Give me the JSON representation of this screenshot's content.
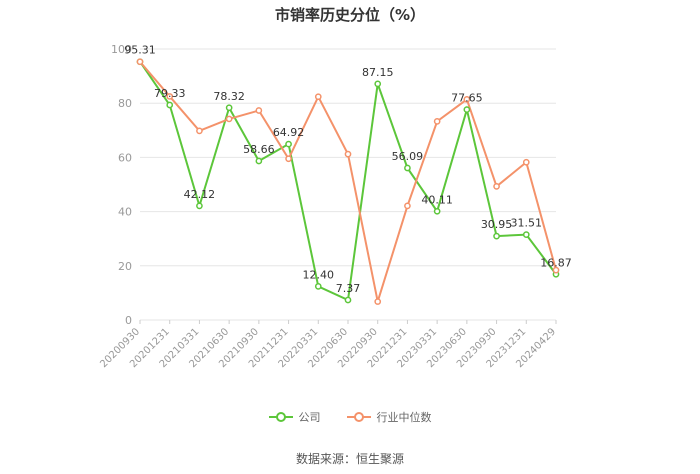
{
  "title": "市销率历史分位（%）",
  "source": "数据来源：恒生聚源",
  "colors": {
    "company": "#5cc63a",
    "industry": "#f4926a",
    "grid": "#e6e6e6",
    "axis_text": "#999999"
  },
  "chart_data": {
    "type": "line",
    "title": "市销率历史分位（%）",
    "x": [
      "20200930",
      "20201231",
      "20210331",
      "20210630",
      "20210930",
      "20211231",
      "20220331",
      "20220630",
      "20220930",
      "20221231",
      "20230331",
      "20230630",
      "20230930",
      "20231231",
      "20240429"
    ],
    "ylim": [
      0,
      100
    ],
    "yticks": [
      0,
      20,
      40,
      60,
      80,
      100
    ],
    "grid": true,
    "legend": "bottom",
    "series": [
      {
        "name": "公司",
        "color": "#5cc63a",
        "labeled": true,
        "values": [
          95.31,
          79.33,
          42.12,
          78.32,
          58.66,
          64.92,
          12.4,
          7.37,
          87.15,
          56.09,
          40.11,
          77.65,
          30.95,
          31.51,
          16.87
        ],
        "labels": [
          "95.31",
          "79.33",
          "42.12",
          "78.32",
          "58.66",
          "64.92",
          "12.40",
          "7.37",
          "87.15",
          "56.09",
          "40.11",
          "77.65",
          "30.95",
          "31.51",
          "16.87"
        ]
      },
      {
        "name": "行业中位数",
        "color": "#f4926a",
        "labeled": false,
        "values": [
          95.3,
          82.5,
          69.8,
          74.2,
          77.3,
          59.5,
          82.4,
          61.2,
          6.8,
          42.1,
          73.3,
          81.4,
          49.3,
          58.2,
          18.4
        ]
      }
    ]
  }
}
